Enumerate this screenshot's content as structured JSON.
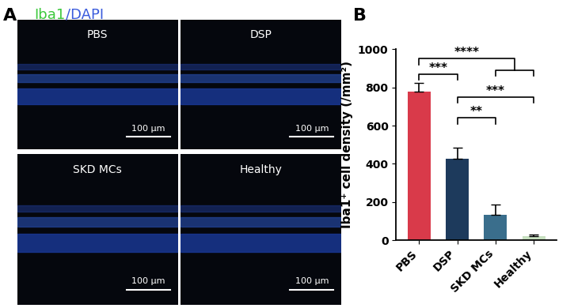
{
  "panel_a": {
    "label": "A",
    "title_parts": [
      {
        "text": "Iba1",
        "color": "#3cc83c"
      },
      {
        "text": "/DAPI",
        "color": "#3a5bdc"
      }
    ],
    "images": [
      "PBS",
      "DSP",
      "SKD MCs",
      "Healthy"
    ],
    "scale_bar": "100 μm"
  },
  "chart_data": {
    "type": "bar",
    "panel_label": "B",
    "categories": [
      "PBS",
      "DSP",
      "SKD MCs",
      "Healthy"
    ],
    "values": [
      780,
      425,
      135,
      20
    ],
    "errors": [
      45,
      60,
      50,
      10
    ],
    "colors": [
      "#d93a4a",
      "#1d3a5c",
      "#3a6e8c",
      "#c7e0c0"
    ],
    "y_label": "Iba1⁺ cell density (/mm²)",
    "ylim": [
      0,
      1000
    ],
    "yticks": [
      0,
      200,
      400,
      600,
      800,
      1000
    ],
    "significance": [
      {
        "from": 0,
        "to": [
          2,
          3
        ],
        "label": "****"
      },
      {
        "from": 0,
        "to": [
          1
        ],
        "label": "***"
      },
      {
        "from": 1,
        "to": [
          3
        ],
        "label": "***"
      },
      {
        "from": 1,
        "to": [
          2
        ],
        "label": "**"
      }
    ]
  }
}
